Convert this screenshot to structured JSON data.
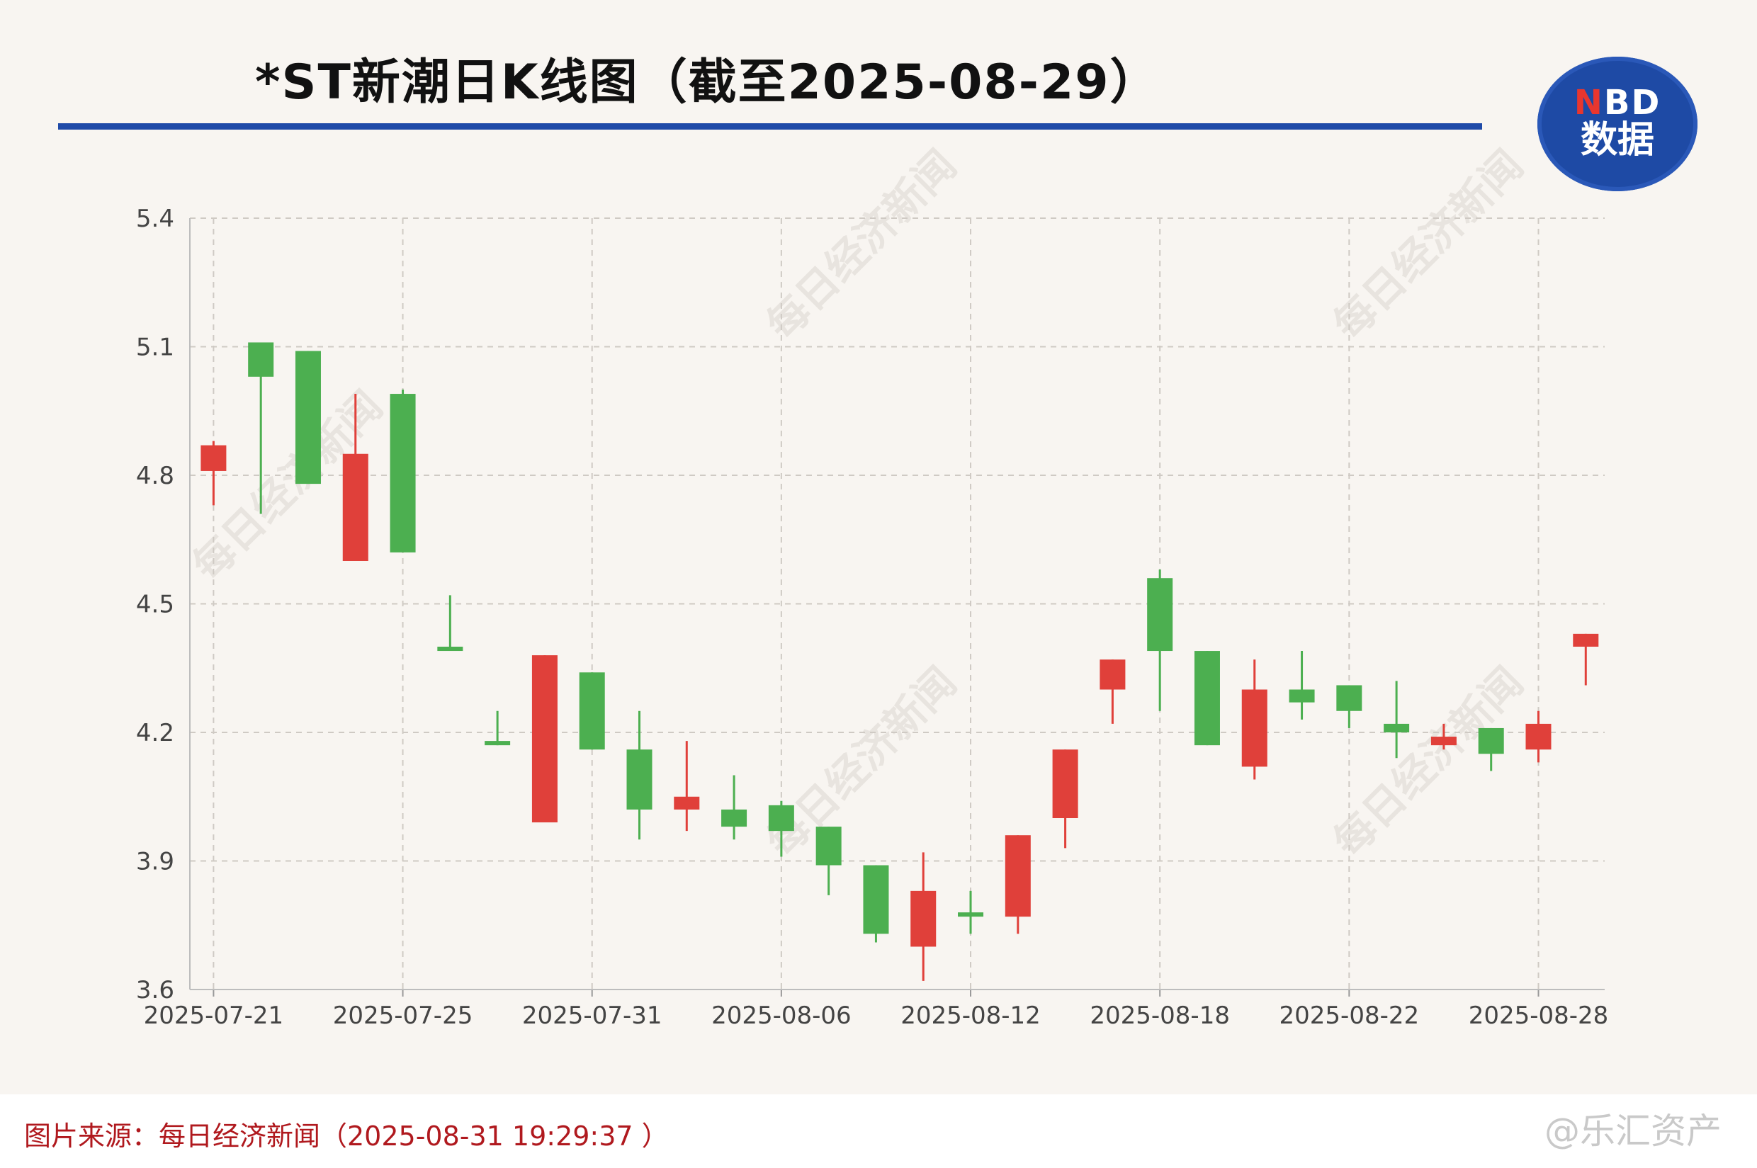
{
  "title": "*ST新潮日K线图（截至2025-08-29）",
  "logo": {
    "line1_n": "N",
    "line1_rest": "BD",
    "line2": "数据"
  },
  "watermark": "每日经济新闻",
  "footer": {
    "source": "图片来源：每日经济新闻（2025-08-31 19:29:37 ）",
    "credit": "@乐汇资产"
  },
  "colors": {
    "up": "#e0403a",
    "down": "#4caf50",
    "accent": "#1f4aa8"
  },
  "chart_data": {
    "type": "candlestick",
    "ylim": [
      3.6,
      5.4
    ],
    "yticks": [
      3.6,
      3.9,
      4.2,
      4.5,
      4.8,
      5.1,
      5.4
    ],
    "xticks": [
      "2025-07-21",
      "2025-07-25",
      "2025-07-31",
      "2025-08-06",
      "2025-08-12",
      "2025-08-18",
      "2025-08-22",
      "2025-08-28"
    ],
    "xtick_index": [
      0,
      4,
      8,
      12,
      16,
      20,
      24,
      28
    ],
    "grid": true,
    "candles": [
      {
        "o": 4.81,
        "h": 4.88,
        "l": 4.73,
        "c": 4.87
      },
      {
        "o": 5.11,
        "h": 5.11,
        "l": 4.71,
        "c": 5.03
      },
      {
        "o": 5.09,
        "h": 5.09,
        "l": 4.78,
        "c": 4.78
      },
      {
        "o": 4.6,
        "h": 4.99,
        "l": 4.6,
        "c": 4.85
      },
      {
        "o": 4.99,
        "h": 5.0,
        "l": 4.62,
        "c": 4.62
      },
      {
        "o": 4.4,
        "h": 4.52,
        "l": 4.39,
        "c": 4.39
      },
      {
        "o": 4.18,
        "h": 4.25,
        "l": 4.17,
        "c": 4.17
      },
      {
        "o": 3.99,
        "h": 4.38,
        "l": 3.99,
        "c": 4.38
      },
      {
        "o": 4.34,
        "h": 4.34,
        "l": 4.16,
        "c": 4.16
      },
      {
        "o": 4.16,
        "h": 4.25,
        "l": 3.95,
        "c": 4.02
      },
      {
        "o": 4.02,
        "h": 4.18,
        "l": 3.97,
        "c": 4.05
      },
      {
        "o": 4.02,
        "h": 4.1,
        "l": 3.95,
        "c": 3.98
      },
      {
        "o": 4.03,
        "h": 4.04,
        "l": 3.91,
        "c": 3.97
      },
      {
        "o": 3.98,
        "h": 3.98,
        "l": 3.82,
        "c": 3.89
      },
      {
        "o": 3.89,
        "h": 3.89,
        "l": 3.71,
        "c": 3.73
      },
      {
        "o": 3.7,
        "h": 3.92,
        "l": 3.62,
        "c": 3.83
      },
      {
        "o": 3.78,
        "h": 3.83,
        "l": 3.73,
        "c": 3.77
      },
      {
        "o": 3.77,
        "h": 3.96,
        "l": 3.73,
        "c": 3.96
      },
      {
        "o": 4.0,
        "h": 4.16,
        "l": 3.93,
        "c": 4.16
      },
      {
        "o": 4.3,
        "h": 4.37,
        "l": 4.22,
        "c": 4.37
      },
      {
        "o": 4.56,
        "h": 4.58,
        "l": 4.25,
        "c": 4.39
      },
      {
        "o": 4.39,
        "h": 4.39,
        "l": 4.17,
        "c": 4.17
      },
      {
        "o": 4.12,
        "h": 4.37,
        "l": 4.09,
        "c": 4.3
      },
      {
        "o": 4.3,
        "h": 4.39,
        "l": 4.23,
        "c": 4.27
      },
      {
        "o": 4.31,
        "h": 4.31,
        "l": 4.21,
        "c": 4.25
      },
      {
        "o": 4.22,
        "h": 4.32,
        "l": 4.14,
        "c": 4.2
      },
      {
        "o": 4.17,
        "h": 4.22,
        "l": 4.16,
        "c": 4.19
      },
      {
        "o": 4.21,
        "h": 4.21,
        "l": 4.11,
        "c": 4.15
      },
      {
        "o": 4.16,
        "h": 4.25,
        "l": 4.13,
        "c": 4.22
      },
      {
        "o": 4.4,
        "h": 4.43,
        "l": 4.31,
        "c": 4.43
      }
    ]
  }
}
